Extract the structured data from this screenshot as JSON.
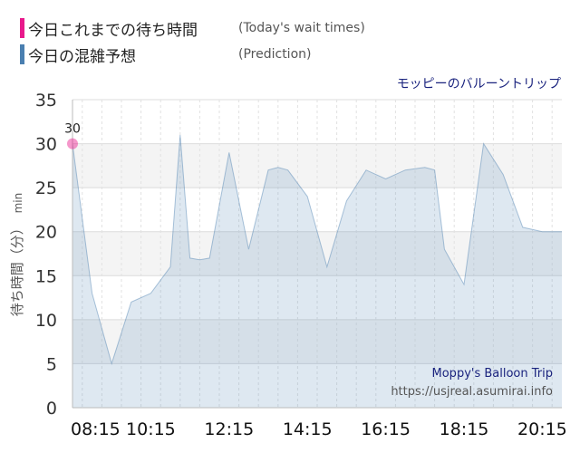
{
  "legend": {
    "today": {
      "label_jp": "今日これまでの待ち時間",
      "label_en": "(Today's wait times)",
      "color": "#e8198b"
    },
    "prediction": {
      "label_jp": "今日の混雑予想",
      "label_en": "(Prediction)",
      "color": "#4a7fb0"
    }
  },
  "watermark": {
    "line1": "Moppy's Balloon Trip",
    "line2": "https://usjreal.asumirai.info"
  },
  "chart_data": {
    "type": "area",
    "title": "モッピーのバルーントリップ",
    "ylabel": "待ち時間（分）",
    "yunit": "min",
    "ylim": [
      0,
      35
    ],
    "xlim": [
      "08:15",
      "20:45"
    ],
    "yticks": [
      0,
      5,
      10,
      15,
      20,
      25,
      30,
      35
    ],
    "xticks": [
      "08:15",
      "10:15",
      "12:15",
      "14:15",
      "16:15",
      "18:15",
      "20:15"
    ],
    "grid": true,
    "series": [
      {
        "key": "prediction",
        "color": "#4a7fb0",
        "points": [
          [
            "08:15",
            30
          ],
          [
            "08:45",
            13
          ],
          [
            "09:15",
            5
          ],
          [
            "09:45",
            12
          ],
          [
            "10:15",
            13
          ],
          [
            "10:45",
            16
          ],
          [
            "11:00",
            31
          ],
          [
            "11:15",
            17
          ],
          [
            "11:30",
            16.8
          ],
          [
            "11:45",
            17
          ],
          [
            "12:15",
            29
          ],
          [
            "12:45",
            18
          ],
          [
            "13:15",
            27
          ],
          [
            "13:30",
            27.3
          ],
          [
            "13:45",
            27
          ],
          [
            "14:15",
            24
          ],
          [
            "14:45",
            16
          ],
          [
            "15:15",
            23.5
          ],
          [
            "15:45",
            27
          ],
          [
            "16:15",
            26
          ],
          [
            "16:45",
            27
          ],
          [
            "17:15",
            27.3
          ],
          [
            "17:30",
            27
          ],
          [
            "17:45",
            18
          ],
          [
            "18:15",
            14
          ],
          [
            "18:45",
            30
          ],
          [
            "19:15",
            26.5
          ],
          [
            "19:45",
            20.5
          ],
          [
            "20:15",
            20
          ],
          [
            "20:45",
            20
          ]
        ]
      },
      {
        "key": "today",
        "color": "#e8198b",
        "points": [
          [
            "08:15",
            30
          ]
        ]
      }
    ],
    "data_labels": [
      {
        "x": "08:15",
        "y": 30,
        "text": "30"
      }
    ]
  }
}
